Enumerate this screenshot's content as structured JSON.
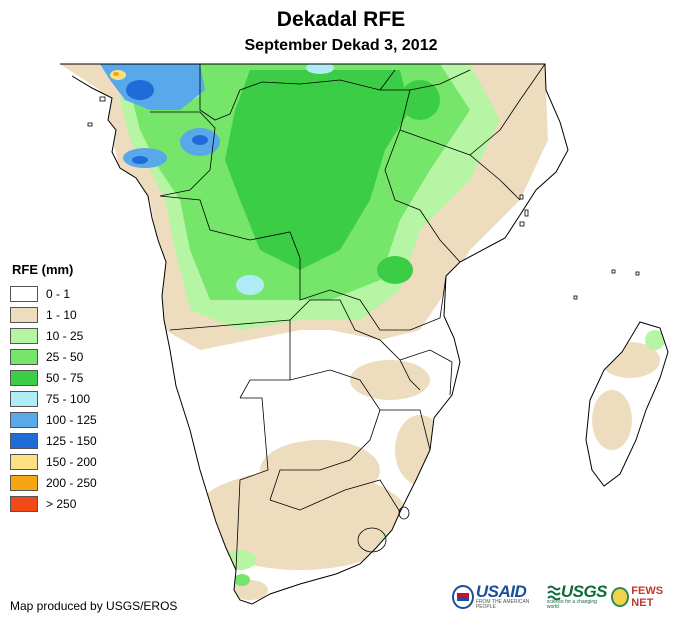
{
  "title": "Dekadal RFE",
  "subtitle": "September Dekad 3, 2012",
  "legend": {
    "title": "RFE (mm)",
    "items": [
      {
        "label": "0 - 1",
        "color": "#ffffff"
      },
      {
        "label": "1 - 10",
        "color": "#eedcbe"
      },
      {
        "label": "10 - 25",
        "color": "#b6f5a4"
      },
      {
        "label": "25 - 50",
        "color": "#76e66b"
      },
      {
        "label": "50 - 75",
        "color": "#3ccd46"
      },
      {
        "label": "75 - 100",
        "color": "#b0ecf6"
      },
      {
        "label": "100 - 125",
        "color": "#59a8e9"
      },
      {
        "label": "125 - 150",
        "color": "#1f6bd8"
      },
      {
        "label": "150 - 200",
        "color": "#fbe183"
      },
      {
        "label": "200 - 250",
        "color": "#f5a50f"
      },
      {
        "label": "> 250",
        "color": "#f24b1a"
      }
    ]
  },
  "credit": "Map produced by USGS/EROS",
  "logos": {
    "usaid": "USAID",
    "usaid_tagline": "FROM THE AMERICAN PEOPLE",
    "usgs": "USGS",
    "usgs_tagline": "science for a changing world",
    "fews": "FEWS NET"
  }
}
